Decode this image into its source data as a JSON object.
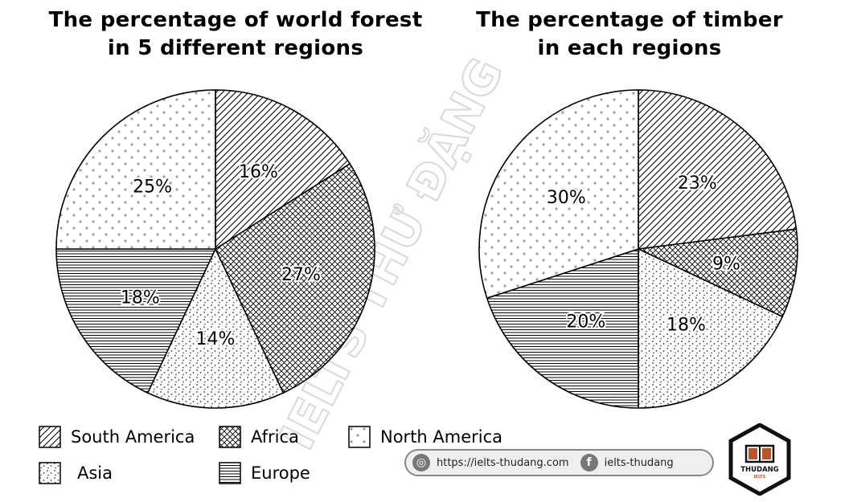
{
  "chart_data": [
    {
      "type": "pie",
      "title_lines": [
        "The percentage of world forest",
        "in 5 different regions"
      ],
      "slices": [
        {
          "category": "South America",
          "value": 16,
          "label": "16%"
        },
        {
          "category": "Africa",
          "value": 27,
          "label": "27%"
        },
        {
          "category": "Asia",
          "value": 14,
          "label": "14%"
        },
        {
          "category": "Europe",
          "value": 18,
          "label": "18%"
        },
        {
          "category": "North America",
          "value": 25,
          "label": "25%"
        }
      ]
    },
    {
      "type": "pie",
      "title_lines": [
        "The percentage of timber",
        "in each regions"
      ],
      "slices": [
        {
          "category": "South America",
          "value": 23,
          "label": "23%"
        },
        {
          "category": "Africa",
          "value": 9,
          "label": "9%"
        },
        {
          "category": "Asia",
          "value": 18,
          "label": "18%"
        },
        {
          "category": "Europe",
          "value": 20,
          "label": "20%"
        },
        {
          "category": "North America",
          "value": 30,
          "label": "30%"
        }
      ]
    }
  ],
  "legend": [
    {
      "category": "South America",
      "label": "South America",
      "pattern": "diagonal-hatch"
    },
    {
      "category": "Africa",
      "label": "Africa",
      "pattern": "cross-hatch"
    },
    {
      "category": "North America",
      "label": "North America",
      "pattern": "plus-dots"
    },
    {
      "category": "Asia",
      "label": "Asia",
      "pattern": "fine-dots"
    },
    {
      "category": "Europe",
      "label": "Europe",
      "pattern": "horizontal-lines"
    }
  ],
  "watermark": "IELTS THƯ ĐẶNG",
  "footer": {
    "website": "https://ielts-thudang.com",
    "facebook": "ielts-thudang",
    "website_icon": "globe-icon",
    "facebook_icon": "facebook-icon"
  },
  "logo": {
    "text": "THUDANG",
    "subtext": "IELTS",
    "icon": "book-icon"
  }
}
